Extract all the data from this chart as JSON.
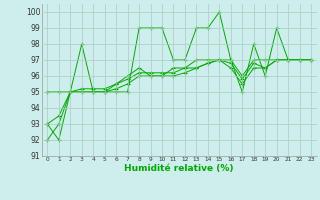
{
  "title": "",
  "xlabel": "Humidité relative (%)",
  "ylabel": "",
  "background_color": "#ceeeed",
  "grid_color": "#aaccbb",
  "line_color": "#00aa00",
  "xlim": [
    -0.5,
    23.5
  ],
  "ylim": [
    91,
    100.5
  ],
  "yticks": [
    91,
    92,
    93,
    94,
    95,
    96,
    97,
    98,
    99,
    100
  ],
  "xticks": [
    0,
    1,
    2,
    3,
    4,
    5,
    6,
    7,
    8,
    9,
    10,
    11,
    12,
    13,
    14,
    15,
    16,
    17,
    18,
    19,
    20,
    21,
    22,
    23
  ],
  "series": [
    [
      93,
      92,
      95,
      98,
      95,
      95,
      95,
      95,
      99,
      99,
      99,
      97,
      97,
      99,
      99,
      100,
      97,
      95,
      98,
      96,
      99,
      97,
      97,
      97
    ],
    [
      95,
      95,
      95,
      95,
      95,
      95,
      95.5,
      96,
      96.5,
      96,
      96,
      96.5,
      96.5,
      97,
      97,
      97,
      97,
      96,
      97,
      97,
      97,
      97,
      97,
      97
    ],
    [
      92,
      93,
      95,
      95,
      95,
      95,
      95.2,
      95.5,
      96,
      96,
      96,
      96,
      96.2,
      96.5,
      96.8,
      97,
      96.5,
      95.5,
      96.5,
      96.5,
      97,
      97,
      97,
      97
    ],
    [
      93,
      93.5,
      95,
      95.2,
      95.2,
      95.2,
      95.5,
      95.8,
      96.2,
      96.2,
      96.2,
      96.2,
      96.5,
      96.5,
      96.8,
      97,
      96.8,
      95.8,
      96.8,
      96.5,
      97,
      97,
      97,
      97
    ]
  ]
}
